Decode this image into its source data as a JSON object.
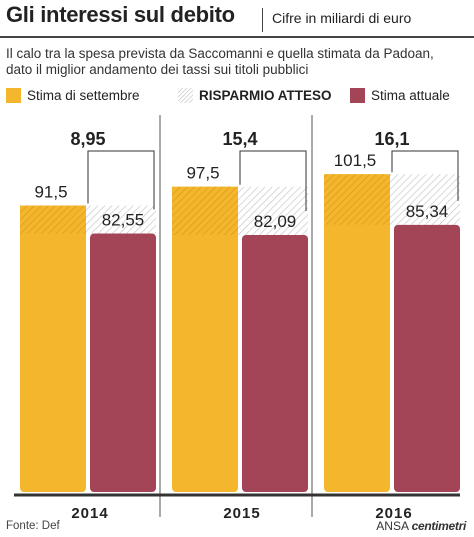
{
  "header": {
    "title": "Gli interessi sul debito",
    "subtitle": "Cifre in miliardi di euro",
    "description_line1": "Il calo tra la spesa prevista da Saccomanni e quella stimata da Padoan,",
    "description_line2": "dato il miglior andamento dei tassi sui titoli pubblici"
  },
  "legend": {
    "item1": "Stima di settembre",
    "item2": "RISPARMIO ATTESO",
    "item3": "Stima attuale"
  },
  "colors": {
    "stima_settembre": "#F4B62C",
    "stima_attuale": "#A34457",
    "risparmio_hatch": "#bdbdbd",
    "background": "#ffffff"
  },
  "chart_data": {
    "type": "bar",
    "categories": [
      "2014",
      "2015",
      "2016"
    ],
    "series": [
      {
        "name": "Stima di settembre",
        "values": [
          91.5,
          97.5,
          101.5
        ],
        "labels": [
          "91,5",
          "97,5",
          "101,5"
        ]
      },
      {
        "name": "Stima attuale",
        "values": [
          82.55,
          82.09,
          85.34
        ],
        "labels": [
          "82,55",
          "82,09",
          "85,34"
        ]
      },
      {
        "name": "RISPARMIO ATTESO",
        "values": [
          8.95,
          15.4,
          16.1
        ],
        "labels": [
          "8,95",
          "15,4",
          "16,1"
        ]
      }
    ],
    "title": "Gli interessi sul debito",
    "subtitle": "Cifre in miliardi di euro",
    "xlabel": "",
    "ylabel": "",
    "ylim": [
      0,
      107
    ],
    "grid": false,
    "legend_position": "top"
  },
  "footer": {
    "source": "Fonte: Def",
    "brand_prefix": "ANSA",
    "brand_name": "centimetri"
  }
}
